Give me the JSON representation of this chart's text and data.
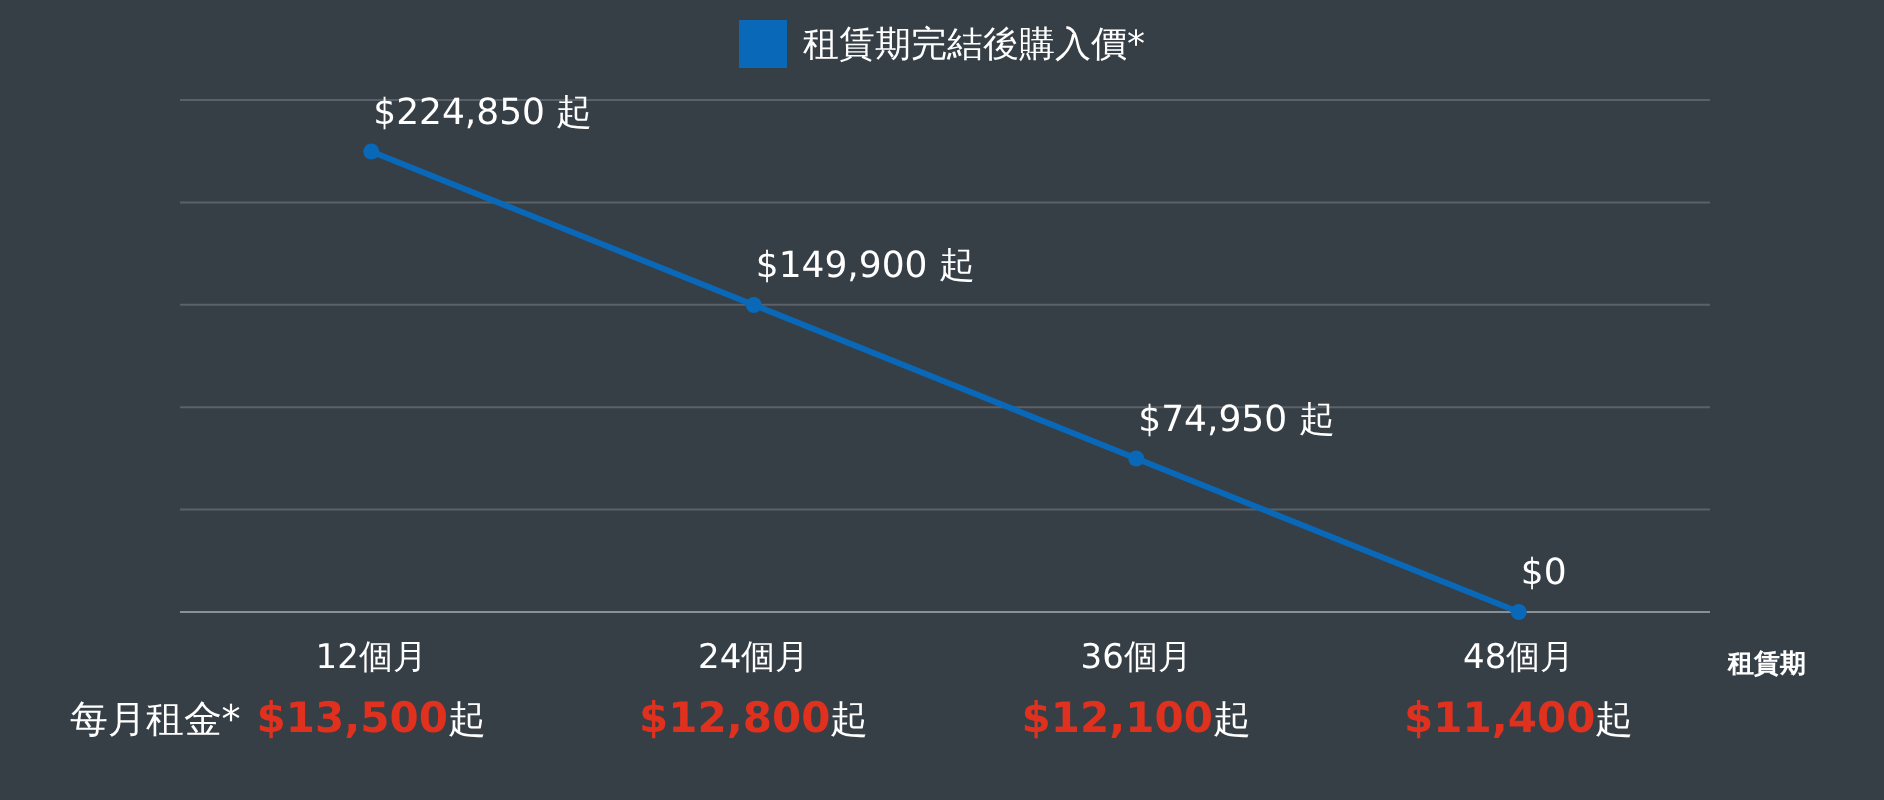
{
  "chart_data": {
    "type": "line",
    "categories": [
      "12個月",
      "24個月",
      "36個月",
      "48個月"
    ],
    "series": [
      {
        "name": "租賃期完結後購入價*",
        "color": "#0a68b8",
        "values": [
          224850,
          149900,
          74950,
          0
        ],
        "value_labels": [
          "$224,850 起",
          "$149,900 起",
          "$74,950 起",
          "$0"
        ]
      }
    ],
    "xlabel": "租賃期",
    "ylim": [
      0,
      250000
    ],
    "yticks": [
      {
        "value": 0,
        "label": null
      },
      {
        "value": 50000,
        "label": null
      },
      {
        "value": 100000,
        "label": null
      },
      {
        "value": 150000,
        "label": null
      },
      {
        "value": 200000,
        "label": null
      },
      {
        "value": 250000,
        "label": null
      }
    ],
    "tick_labels": "x",
    "grid": "y",
    "legend": "top",
    "marker": "circle",
    "line_style": "solid",
    "annotations": [
      "每月租金*",
      "$13,500起",
      "$12,800起",
      "$12,100起",
      "$11,400起"
    ]
  }
}
